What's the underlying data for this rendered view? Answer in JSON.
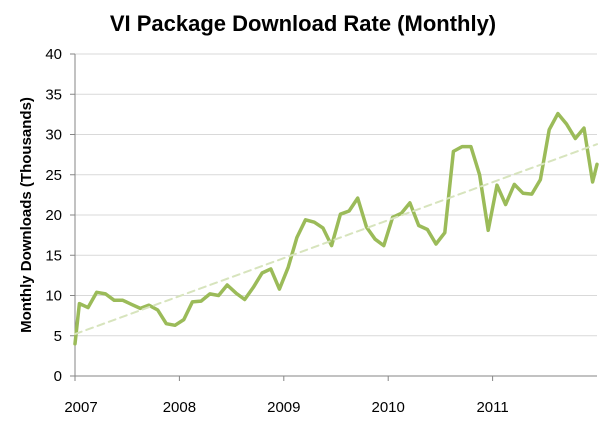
{
  "chart_data": {
    "type": "line",
    "title": "VI Package Download Rate (Monthly)",
    "xlabel": "",
    "ylabel": "Monthly Downloads (Thousands)",
    "ylim": [
      0,
      40
    ],
    "y_ticks": [
      "0",
      "5",
      "10",
      "15",
      "20",
      "25",
      "30",
      "35",
      "40"
    ],
    "x_ticks": [
      "2007",
      "2008",
      "2009",
      "2010",
      "2011"
    ],
    "xlim": [
      2007.0,
      2012.0
    ],
    "grid": true,
    "legend": "none",
    "series": [
      {
        "color": "#9bbb59",
        "x": [
          2007.0,
          2007.042,
          2007.125,
          2007.208,
          2007.292,
          2007.375,
          2007.458,
          2007.542,
          2007.625,
          2007.708,
          2007.792,
          2007.875,
          2007.958,
          2008.042,
          2008.125,
          2008.208,
          2008.292,
          2008.375,
          2008.458,
          2008.542,
          2008.625,
          2008.708,
          2008.792,
          2008.875,
          2008.958,
          2009.042,
          2009.125,
          2009.208,
          2009.292,
          2009.375,
          2009.458,
          2009.542,
          2009.625,
          2009.708,
          2009.792,
          2009.875,
          2009.958,
          2010.042,
          2010.125,
          2010.208,
          2010.292,
          2010.375,
          2010.458,
          2010.542,
          2010.625,
          2010.708,
          2010.792,
          2010.875,
          2010.958,
          2011.042,
          2011.125,
          2011.208,
          2011.292,
          2011.375,
          2011.458,
          2011.542,
          2011.625,
          2011.708,
          2011.792,
          2011.875,
          2011.958,
          2012.0
        ],
        "values": [
          4.0,
          9.0,
          8.5,
          10.4,
          10.2,
          9.4,
          9.4,
          8.9,
          8.4,
          8.8,
          8.2,
          6.5,
          6.3,
          7.0,
          9.2,
          9.3,
          10.2,
          10.0,
          11.3,
          10.3,
          9.5,
          11.0,
          12.8,
          13.3,
          10.8,
          13.5,
          17.2,
          19.4,
          19.1,
          18.4,
          16.2,
          20.1,
          20.5,
          22.1,
          18.5,
          17.0,
          16.2,
          19.7,
          20.2,
          21.5,
          18.7,
          18.2,
          16.4,
          17.8,
          27.9,
          28.5,
          28.5,
          25.0,
          18.1,
          23.7,
          21.3,
          23.8,
          22.7,
          22.6,
          24.4,
          30.6,
          32.6,
          31.3,
          29.5,
          30.8,
          24.1,
          26.3
        ]
      },
      {
        "style": "dashed",
        "color": "#d7e4bd",
        "x": [
          2007.0,
          2012.0
        ],
        "values": [
          5.2,
          28.8
        ]
      }
    ]
  }
}
